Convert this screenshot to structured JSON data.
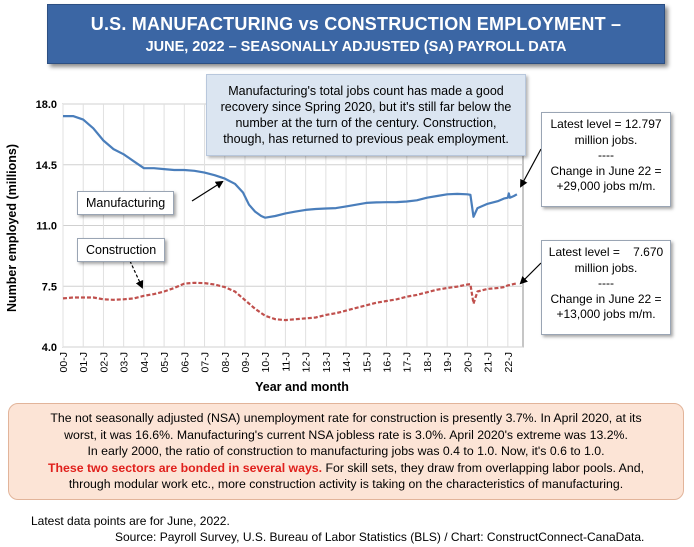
{
  "title": {
    "line1": "U.S. MANUFACTURING vs CONSTRUCTION EMPLOYMENT –",
    "line2": "JUNE, 2022 – SEASONALLY ADJUSTED (SA) PAYROLL DATA"
  },
  "annotations": {
    "top_note": [
      "Manufacturing's total jobs count has made a good",
      "recovery since Spring 2020, but it's still far below the",
      "number at the turn of the century. Construction,",
      "though, has returned to previous peak employment."
    ],
    "manufacturing_box": [
      "Latest level = 12.797",
      "million jobs.",
      "----",
      "Change in June 22 =",
      "+29,000 jobs m/m."
    ],
    "construction_box": [
      "Latest level =    7.670",
      "million jobs.",
      "----",
      "Change in June 22 =",
      "+13,000 jobs m/m."
    ]
  },
  "bottom_text": {
    "line1": "The not seasonally adjusted (NSA) unemployment rate for construction is presently 3.7%. In April 2020, at its",
    "line2": "worst, it was 16.6%. Manufacturing's current NSA jobless rate is 3.0%. April 2020's extreme was 13.2%.",
    "line3": "In early 2000, the ratio of construction to manufacturing jobs was 0.4 to 1.0. Now, it's 0.6 to 1.0.",
    "line4_red": "These two sectors are bonded in several ways.",
    "line4_rest": " For skill sets, they draw from overlapping labor pools. And,",
    "line5": "through modular work etc.,  more construction activity is taking on the characteristics of manufacturing."
  },
  "footnotes": {
    "latest": "Latest data points are for June, 2022.",
    "source": "Source: Payroll Survey, U.S. Bureau of Labor Statistics (BLS) / Chart: ConstructConnect-CanaData."
  },
  "chart_data": {
    "type": "line",
    "xlabel": "Year and month",
    "ylabel": "Number employed (millions)",
    "ylim": [
      4.0,
      18.0
    ],
    "yticks": [
      "4.0",
      "7.5",
      "11.0",
      "14.5",
      "18.0"
    ],
    "xticks": [
      "00-J",
      "01-J",
      "02-J",
      "03-J",
      "04-J",
      "05-J",
      "06-J",
      "07-J",
      "08-J",
      "09-J",
      "10-J",
      "11-J",
      "12-J",
      "13-J",
      "14-J",
      "15-J",
      "16-J",
      "17-J",
      "18-J",
      "19-J",
      "20-J",
      "21-J",
      "22-J"
    ],
    "grid": true,
    "series": [
      {
        "name": "Manufacturing",
        "color": "#4a7ebb",
        "style": "solid",
        "points": [
          [
            2000.0,
            17.3
          ],
          [
            2000.5,
            17.3
          ],
          [
            2001.0,
            17.1
          ],
          [
            2001.5,
            16.6
          ],
          [
            2002.0,
            15.9
          ],
          [
            2002.5,
            15.4
          ],
          [
            2003.0,
            15.1
          ],
          [
            2003.5,
            14.7
          ],
          [
            2004.0,
            14.3
          ],
          [
            2004.5,
            14.3
          ],
          [
            2005.0,
            14.25
          ],
          [
            2005.5,
            14.2
          ],
          [
            2006.0,
            14.2
          ],
          [
            2006.5,
            14.15
          ],
          [
            2007.0,
            14.05
          ],
          [
            2007.5,
            13.9
          ],
          [
            2008.0,
            13.7
          ],
          [
            2008.5,
            13.4
          ],
          [
            2008.9,
            12.9
          ],
          [
            2009.2,
            12.2
          ],
          [
            2009.5,
            11.8
          ],
          [
            2009.8,
            11.55
          ],
          [
            2010.0,
            11.45
          ],
          [
            2010.5,
            11.55
          ],
          [
            2011.0,
            11.7
          ],
          [
            2011.5,
            11.8
          ],
          [
            2012.0,
            11.9
          ],
          [
            2012.5,
            11.95
          ],
          [
            2013.0,
            11.98
          ],
          [
            2013.5,
            12.0
          ],
          [
            2014.0,
            12.1
          ],
          [
            2014.5,
            12.2
          ],
          [
            2015.0,
            12.3
          ],
          [
            2015.5,
            12.33
          ],
          [
            2016.0,
            12.34
          ],
          [
            2016.5,
            12.35
          ],
          [
            2017.0,
            12.38
          ],
          [
            2017.5,
            12.45
          ],
          [
            2018.0,
            12.6
          ],
          [
            2018.5,
            12.7
          ],
          [
            2019.0,
            12.8
          ],
          [
            2019.5,
            12.82
          ],
          [
            2020.0,
            12.8
          ],
          [
            2020.15,
            12.77
          ],
          [
            2020.3,
            11.5
          ],
          [
            2020.5,
            12.0
          ],
          [
            2021.0,
            12.25
          ],
          [
            2021.5,
            12.4
          ],
          [
            2021.8,
            12.55
          ],
          [
            2022.0,
            12.6
          ],
          [
            2022.05,
            12.85
          ],
          [
            2022.1,
            12.6
          ],
          [
            2022.3,
            12.7
          ],
          [
            2022.45,
            12.797
          ]
        ]
      },
      {
        "name": "Construction",
        "color": "#c0504d",
        "style": "dashed",
        "points": [
          [
            2000.0,
            6.8
          ],
          [
            2000.5,
            6.85
          ],
          [
            2001.0,
            6.85
          ],
          [
            2001.5,
            6.85
          ],
          [
            2002.0,
            6.75
          ],
          [
            2002.5,
            6.72
          ],
          [
            2003.0,
            6.75
          ],
          [
            2003.5,
            6.8
          ],
          [
            2004.0,
            6.95
          ],
          [
            2004.5,
            7.05
          ],
          [
            2005.0,
            7.2
          ],
          [
            2005.5,
            7.4
          ],
          [
            2006.0,
            7.65
          ],
          [
            2006.5,
            7.7
          ],
          [
            2007.0,
            7.68
          ],
          [
            2007.5,
            7.6
          ],
          [
            2008.0,
            7.45
          ],
          [
            2008.5,
            7.2
          ],
          [
            2009.0,
            6.7
          ],
          [
            2009.5,
            6.2
          ],
          [
            2010.0,
            5.8
          ],
          [
            2010.5,
            5.6
          ],
          [
            2011.0,
            5.55
          ],
          [
            2011.5,
            5.6
          ],
          [
            2012.0,
            5.65
          ],
          [
            2012.5,
            5.7
          ],
          [
            2013.0,
            5.85
          ],
          [
            2013.5,
            5.95
          ],
          [
            2014.0,
            6.1
          ],
          [
            2014.5,
            6.25
          ],
          [
            2015.0,
            6.4
          ],
          [
            2015.5,
            6.55
          ],
          [
            2016.0,
            6.65
          ],
          [
            2016.5,
            6.75
          ],
          [
            2017.0,
            6.9
          ],
          [
            2017.5,
            7.0
          ],
          [
            2018.0,
            7.15
          ],
          [
            2018.5,
            7.3
          ],
          [
            2019.0,
            7.4
          ],
          [
            2019.5,
            7.48
          ],
          [
            2020.0,
            7.6
          ],
          [
            2020.15,
            7.62
          ],
          [
            2020.3,
            6.5
          ],
          [
            2020.5,
            7.2
          ],
          [
            2021.0,
            7.35
          ],
          [
            2021.5,
            7.4
          ],
          [
            2021.8,
            7.45
          ],
          [
            2022.0,
            7.55
          ],
          [
            2022.45,
            7.67
          ]
        ]
      }
    ]
  }
}
